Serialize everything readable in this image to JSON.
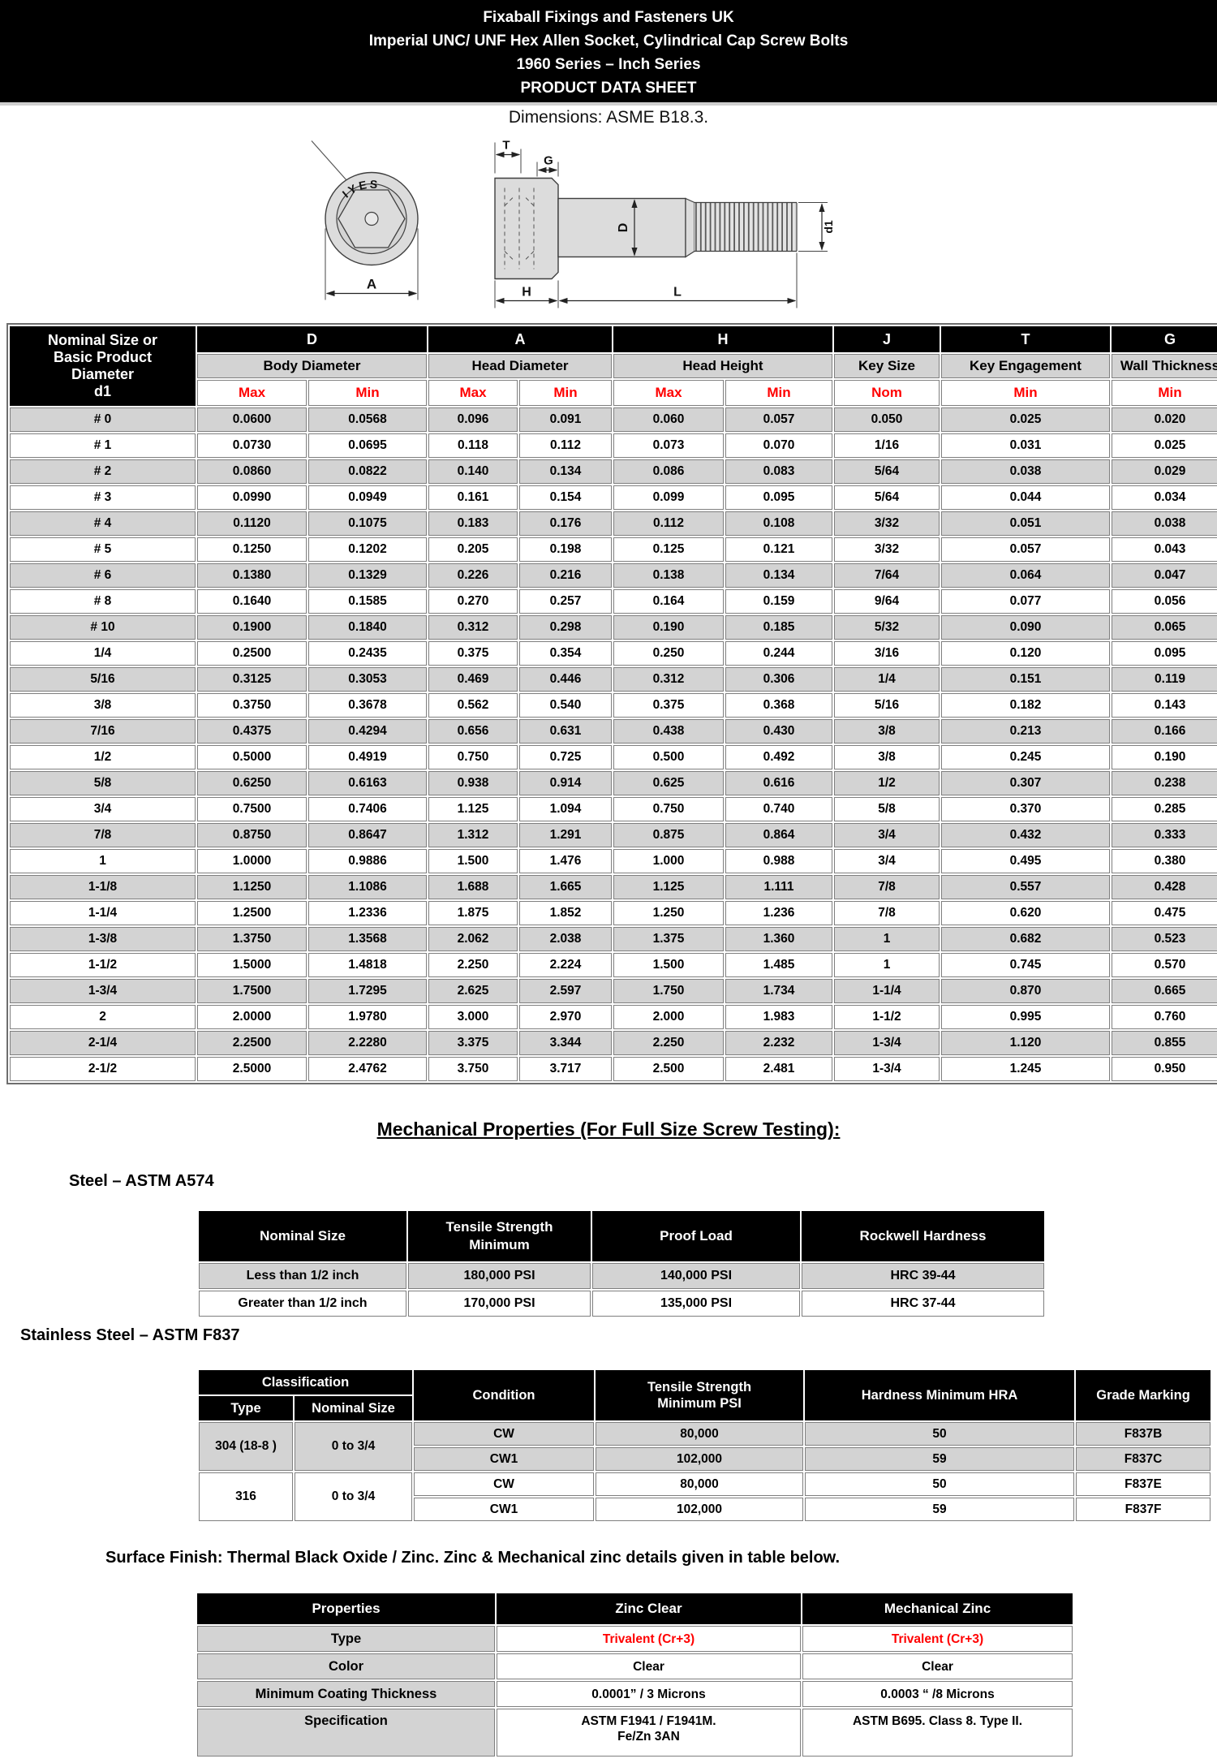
{
  "banner": {
    "line1": "Fixaball Fixings and Fasteners UK",
    "line2": "Imperial UNC/ UNF Hex Allen Socket, Cylindrical Cap Screw Bolts",
    "line3": "1960 Series – Inch Series",
    "line4": "PRODUCT DATA SHEET"
  },
  "dimensions_note": "Dimensions: ASME B18.3.",
  "drawing": {
    "marking": "IYES",
    "labels": {
      "T": "T",
      "G": "G",
      "A": "A",
      "H": "H",
      "L": "L",
      "D": "D",
      "d1": "d1"
    }
  },
  "dim_table": {
    "corner": "Nominal Size or\nBasic Product\nDiameter\nd1",
    "groups": [
      {
        "letter": "D",
        "name": "Body Diameter"
      },
      {
        "letter": "A",
        "name": "Head Diameter"
      },
      {
        "letter": "H",
        "name": "Head Height"
      },
      {
        "letter": "J",
        "name": "Key Size"
      },
      {
        "letter": "T",
        "name": "Key Engagement"
      },
      {
        "letter": "G",
        "name": "Wall Thickness"
      }
    ],
    "units": [
      "Max",
      "Min",
      "Max",
      "Min",
      "Max",
      "Min",
      "Nom",
      "Min",
      "Min"
    ],
    "rows": [
      [
        "# 0",
        "0.0600",
        "0.0568",
        "0.096",
        "0.091",
        "0.060",
        "0.057",
        "0.050",
        "0.025",
        "0.020"
      ],
      [
        "# 1",
        "0.0730",
        "0.0695",
        "0.118",
        "0.112",
        "0.073",
        "0.070",
        "1/16",
        "0.031",
        "0.025"
      ],
      [
        "# 2",
        "0.0860",
        "0.0822",
        "0.140",
        "0.134",
        "0.086",
        "0.083",
        "5/64",
        "0.038",
        "0.029"
      ],
      [
        "# 3",
        "0.0990",
        "0.0949",
        "0.161",
        "0.154",
        "0.099",
        "0.095",
        "5/64",
        "0.044",
        "0.034"
      ],
      [
        "# 4",
        "0.1120",
        "0.1075",
        "0.183",
        "0.176",
        "0.112",
        "0.108",
        "3/32",
        "0.051",
        "0.038"
      ],
      [
        "# 5",
        "0.1250",
        "0.1202",
        "0.205",
        "0.198",
        "0.125",
        "0.121",
        "3/32",
        "0.057",
        "0.043"
      ],
      [
        "# 6",
        "0.1380",
        "0.1329",
        "0.226",
        "0.216",
        "0.138",
        "0.134",
        "7/64",
        "0.064",
        "0.047"
      ],
      [
        "# 8",
        "0.1640",
        "0.1585",
        "0.270",
        "0.257",
        "0.164",
        "0.159",
        "9/64",
        "0.077",
        "0.056"
      ],
      [
        "# 10",
        "0.1900",
        "0.1840",
        "0.312",
        "0.298",
        "0.190",
        "0.185",
        "5/32",
        "0.090",
        "0.065"
      ],
      [
        "1/4",
        "0.2500",
        "0.2435",
        "0.375",
        "0.354",
        "0.250",
        "0.244",
        "3/16",
        "0.120",
        "0.095"
      ],
      [
        "5/16",
        "0.3125",
        "0.3053",
        "0.469",
        "0.446",
        "0.312",
        "0.306",
        "1/4",
        "0.151",
        "0.119"
      ],
      [
        "3/8",
        "0.3750",
        "0.3678",
        "0.562",
        "0.540",
        "0.375",
        "0.368",
        "5/16",
        "0.182",
        "0.143"
      ],
      [
        "7/16",
        "0.4375",
        "0.4294",
        "0.656",
        "0.631",
        "0.438",
        "0.430",
        "3/8",
        "0.213",
        "0.166"
      ],
      [
        "1/2",
        "0.5000",
        "0.4919",
        "0.750",
        "0.725",
        "0.500",
        "0.492",
        "3/8",
        "0.245",
        "0.190"
      ],
      [
        "5/8",
        "0.6250",
        "0.6163",
        "0.938",
        "0.914",
        "0.625",
        "0.616",
        "1/2",
        "0.307",
        "0.238"
      ],
      [
        "3/4",
        "0.7500",
        "0.7406",
        "1.125",
        "1.094",
        "0.750",
        "0.740",
        "5/8",
        "0.370",
        "0.285"
      ],
      [
        "7/8",
        "0.8750",
        "0.8647",
        "1.312",
        "1.291",
        "0.875",
        "0.864",
        "3/4",
        "0.432",
        "0.333"
      ],
      [
        "1",
        "1.0000",
        "0.9886",
        "1.500",
        "1.476",
        "1.000",
        "0.988",
        "3/4",
        "0.495",
        "0.380"
      ],
      [
        "1-1/8",
        "1.1250",
        "1.1086",
        "1.688",
        "1.665",
        "1.125",
        "1.111",
        "7/8",
        "0.557",
        "0.428"
      ],
      [
        "1-1/4",
        "1.2500",
        "1.2336",
        "1.875",
        "1.852",
        "1.250",
        "1.236",
        "7/8",
        "0.620",
        "0.475"
      ],
      [
        "1-3/8",
        "1.3750",
        "1.3568",
        "2.062",
        "2.038",
        "1.375",
        "1.360",
        "1",
        "0.682",
        "0.523"
      ],
      [
        "1-1/2",
        "1.5000",
        "1.4818",
        "2.250",
        "2.224",
        "1.500",
        "1.485",
        "1",
        "0.745",
        "0.570"
      ],
      [
        "1-3/4",
        "1.7500",
        "1.7295",
        "2.625",
        "2.597",
        "1.750",
        "1.734",
        "1-1/4",
        "0.870",
        "0.665"
      ],
      [
        "2",
        "2.0000",
        "1.9780",
        "3.000",
        "2.970",
        "2.000",
        "1.983",
        "1-1/2",
        "0.995",
        "0.760"
      ],
      [
        "2-1/4",
        "2.2500",
        "2.2280",
        "3.375",
        "3.344",
        "2.250",
        "2.232",
        "1-3/4",
        "1.120",
        "0.855"
      ],
      [
        "2-1/2",
        "2.5000",
        "2.4762",
        "3.750",
        "3.717",
        "2.500",
        "2.481",
        "1-3/4",
        "1.245",
        "0.950"
      ]
    ]
  },
  "mech_heading": "Mechanical Properties (For Full Size Screw Testing): ",
  "steel": {
    "heading": "Steel – ASTM A574",
    "headers": [
      "Nominal Size",
      "Tensile Strength\nMinimum",
      "Proof Load",
      "Rockwell Hardness"
    ],
    "rows": [
      [
        "Less than 1/2 inch",
        "180,000 PSI",
        "140,000 PSI",
        "HRC 39-44"
      ],
      [
        "Greater than 1/2 inch",
        "170,000 PSI",
        "135,000 PSI",
        "HRC 37-44"
      ]
    ]
  },
  "stainless": {
    "heading": "Stainless Steel – ASTM F837",
    "headers": {
      "classification": "Classification",
      "type": "Type",
      "nominal_size": "Nominal Size",
      "condition": "Condition",
      "tensile": "Tensile Strength\nMinimum PSI",
      "hardness": "Hardness Minimum HRA",
      "grade": "Grade Marking"
    },
    "rows": {
      "r304": {
        "type": "304 (18-8 )",
        "nominal": "0 to 3/4",
        "cw": {
          "condition": "CW",
          "tensile": "80,000",
          "hardness": "50",
          "grade": "F837B"
        },
        "cw1": {
          "condition": "CW1",
          "tensile": "102,000",
          "hardness": "59",
          "grade": "F837C"
        }
      },
      "r316": {
        "type": "316",
        "nominal": "0 to 3/4",
        "cw": {
          "condition": "CW",
          "tensile": "80,000",
          "hardness": "50",
          "grade": "F837E"
        },
        "cw1": {
          "condition": "CW1",
          "tensile": "102,000",
          "hardness": "59",
          "grade": "F837F"
        }
      }
    }
  },
  "finish": {
    "heading": "Surface Finish: Thermal Black Oxide / Zinc. Zinc & Mechanical zinc details given in table below.",
    "headers": [
      "Properties",
      "Zinc Clear",
      "Mechanical Zinc"
    ],
    "type_row": {
      "label": "Type",
      "zinc": "Trivalent (Cr+3)",
      "mech": "Trivalent (Cr+3)"
    },
    "color_row": {
      "label": "Color",
      "zinc": "Clear",
      "mech": "Clear"
    },
    "thickness_row": {
      "label": "Minimum Coating Thickness",
      "zinc": "0.0001” / 3 Microns",
      "mech": "0.0003 “ /8 Microns"
    },
    "spec_row": {
      "label": "Specification",
      "zinc": "ASTM F1941 / F1941M.\nFe/Zn 3AN",
      "mech": "ASTM B695. Class 8. Type II."
    }
  },
  "colors": {
    "accent_red": "#ff0000",
    "row_gray": "#d3d3d3",
    "header_black": "#000000"
  }
}
